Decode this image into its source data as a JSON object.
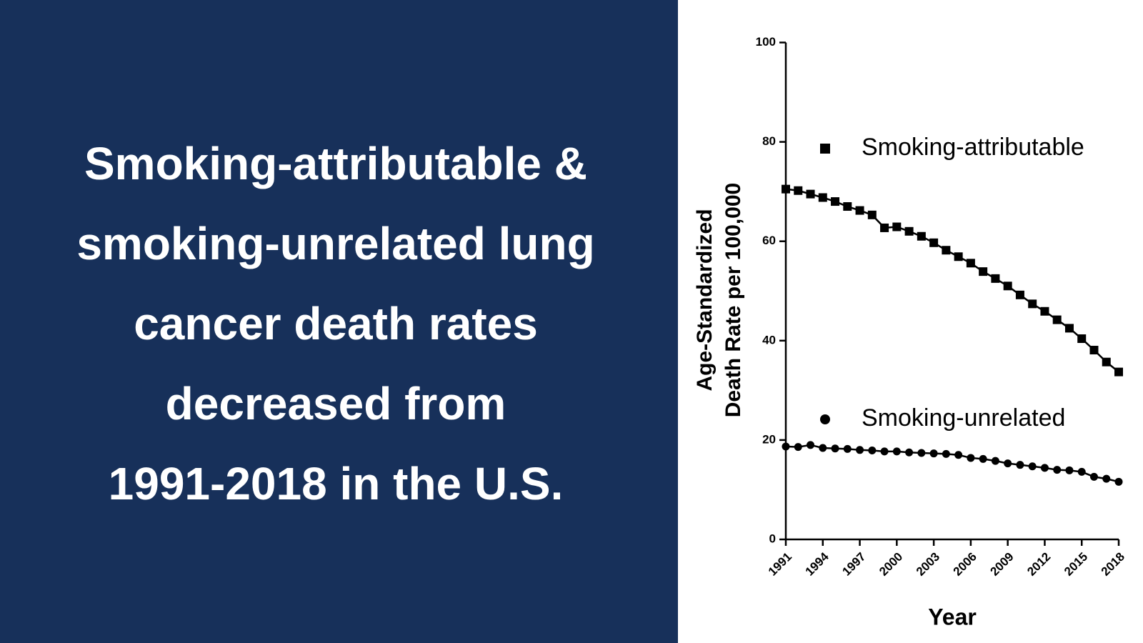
{
  "headline": [
    "Smoking-attributable &",
    "smoking-unrelated lung",
    "cancer death rates",
    "decreased from",
    "1991-2018 in the U.S."
  ],
  "chart_data": {
    "type": "scatter",
    "xlabel": "Year",
    "ylabel": [
      "Age-Standardized",
      "Death Rate per 100,000"
    ],
    "x": [
      1991,
      1992,
      1993,
      1994,
      1995,
      1996,
      1997,
      1998,
      1999,
      2000,
      2001,
      2002,
      2003,
      2004,
      2005,
      2006,
      2007,
      2008,
      2009,
      2010,
      2011,
      2012,
      2013,
      2014,
      2015,
      2016,
      2017,
      2018
    ],
    "series": [
      {
        "name": "Smoking-attributable",
        "color": "#000000",
        "marker": "square",
        "values": [
          70.5,
          70.2,
          69.5,
          68.8,
          68.0,
          67.0,
          66.2,
          65.3,
          62.7,
          62.9,
          62.0,
          61.0,
          59.7,
          58.2,
          56.9,
          55.6,
          53.9,
          52.5,
          51.0,
          49.2,
          47.4,
          45.9,
          44.2,
          42.5,
          40.4,
          38.1,
          35.7,
          33.7
        ]
      },
      {
        "name": "Smoking-unrelated",
        "color": "#000000",
        "marker": "circle",
        "values": [
          18.7,
          18.6,
          19.0,
          18.4,
          18.3,
          18.2,
          18.0,
          17.9,
          17.7,
          17.7,
          17.5,
          17.4,
          17.3,
          17.2,
          17.0,
          16.4,
          16.2,
          15.8,
          15.3,
          15.0,
          14.7,
          14.4,
          14.0,
          13.9,
          13.6,
          12.6,
          12.2,
          11.6
        ]
      }
    ],
    "xlim": [
      1991,
      2018
    ],
    "xticks": [
      1991,
      1994,
      1997,
      2000,
      2003,
      2006,
      2009,
      2012,
      2015,
      2018
    ],
    "ylim": [
      0,
      100
    ],
    "yticks": [
      0,
      20,
      40,
      60,
      80,
      100
    ]
  }
}
